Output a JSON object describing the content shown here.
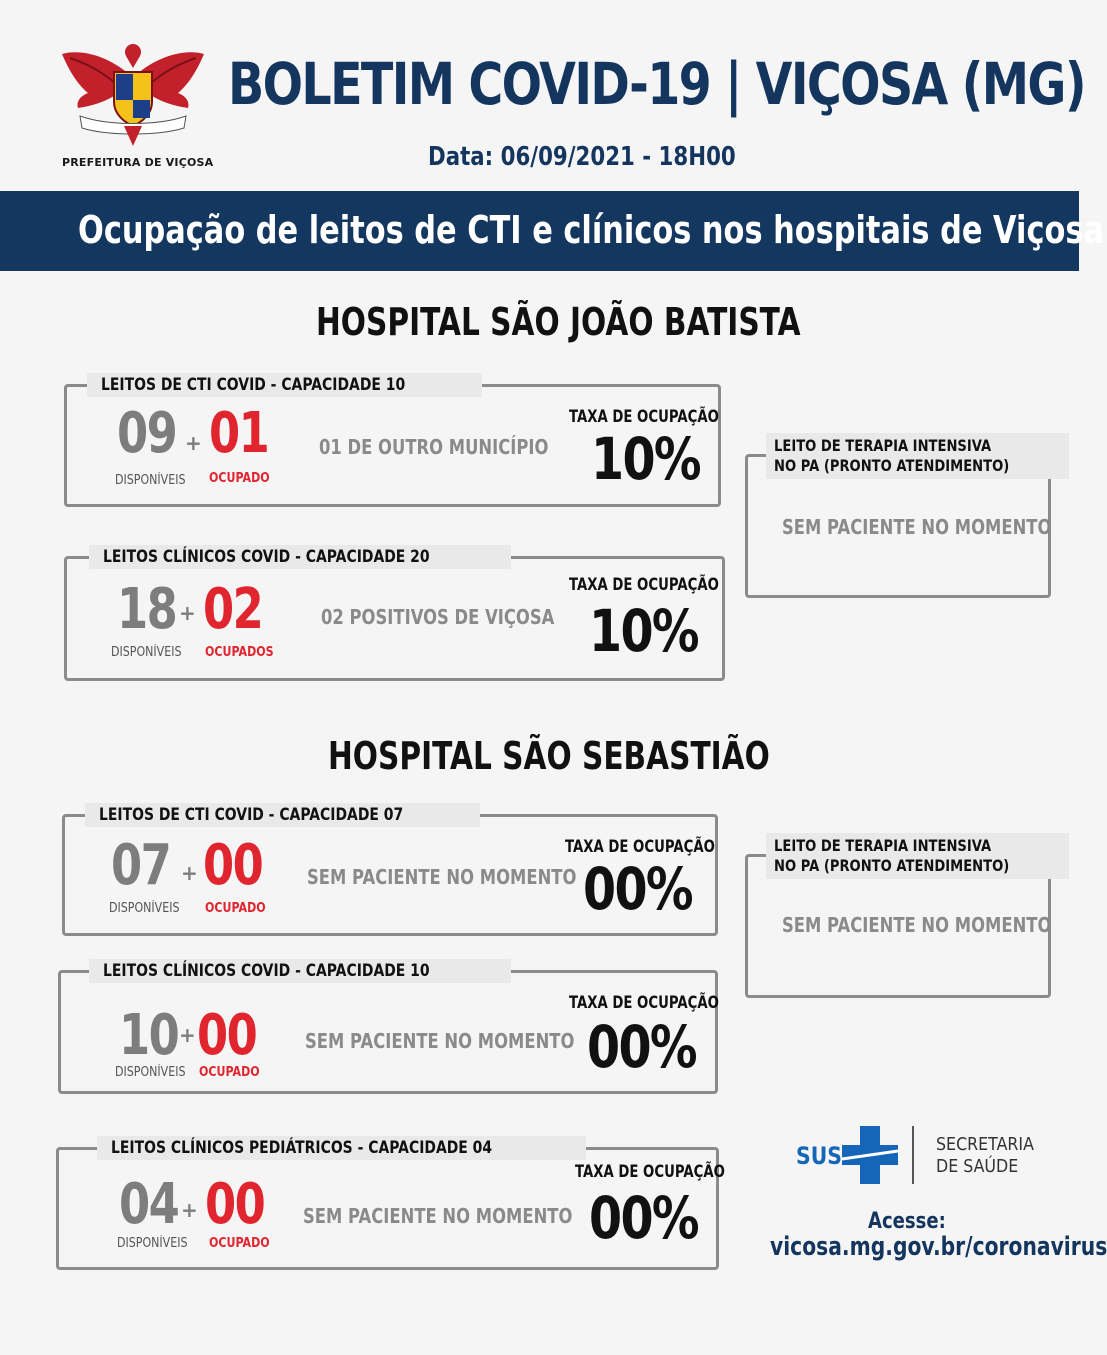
{
  "header": {
    "logo_caption": "PREFEITURA DE VIÇOSA",
    "title": "BOLETIM COVID-19 | VIÇOSA (MG)",
    "date": "Data: 06/09/2021 - 18H00",
    "banner": "Ocupação de leitos de CTI e clínicos nos hospitais de Viçosa"
  },
  "colors": {
    "navy": "#13375f",
    "red": "#e0252f",
    "gray": "#7d7d7d"
  },
  "hospitals": [
    {
      "name": "HOSPITAL SÃO JOÃO BATISTA",
      "cards": [
        {
          "label": "LEITOS DE CTI COVID - CAPACIDADE 10",
          "available": "09",
          "available_label": "DISPONÍVEIS",
          "occupied": "01",
          "occupied_label": "OCUPADO",
          "note": "01 DE OUTRO MUNICÍPIO",
          "rate_label": "TAXA DE OCUPAÇÃO",
          "rate": "10%"
        },
        {
          "label": "LEITOS CLÍNICOS COVID - CAPACIDADE 20",
          "available": "18",
          "available_label": "DISPONÍVEIS",
          "occupied": "02",
          "occupied_label": "OCUPADOS",
          "note": "02 POSITIVOS DE VIÇOSA",
          "rate_label": "TAXA DE OCUPAÇÃO",
          "rate": "10%"
        }
      ],
      "side": {
        "label_line1": "LEITO DE TERAPIA INTENSIVA",
        "label_line2": "NO PA (PRONTO ATENDIMENTO)",
        "note": "SEM PACIENTE NO MOMENTO"
      }
    },
    {
      "name": "HOSPITAL SÃO SEBASTIÃO",
      "cards": [
        {
          "label": "LEITOS DE CTI COVID - CAPACIDADE 07",
          "available": "07",
          "available_label": "DISPONÍVEIS",
          "occupied": "00",
          "occupied_label": "OCUPADO",
          "note": "SEM PACIENTE NO MOMENTO",
          "rate_label": "TAXA DE OCUPAÇÃO",
          "rate": "00%"
        },
        {
          "label": "LEITOS CLÍNICOS COVID - CAPACIDADE 10",
          "available": "10",
          "available_label": "DISPONÍVEIS",
          "occupied": "00",
          "occupied_label": "OCUPADO",
          "note": "SEM PACIENTE NO MOMENTO",
          "rate_label": "TAXA DE OCUPAÇÃO",
          "rate": "00%"
        },
        {
          "label": "LEITOS CLÍNICOS PEDIÁTRICOS - CAPACIDADE 04",
          "available": "04",
          "available_label": "DISPONÍVEIS",
          "occupied": "00",
          "occupied_label": "OCUPADO",
          "note": "SEM PACIENTE NO MOMENTO",
          "rate_label": "TAXA DE OCUPAÇÃO",
          "rate": "00%"
        }
      ],
      "side": {
        "label_line1": "LEITO DE TERAPIA INTENSIVA",
        "label_line2": "NO PA (PRONTO ATENDIMENTO)",
        "note": "SEM PACIENTE NO MOMENTO"
      }
    }
  ],
  "footer": {
    "sus": "SUS",
    "secretaria_line1": "SECRETARIA",
    "secretaria_line2": "DE SAÚDE",
    "access_label": "Acesse:",
    "website": "vicosa.mg.gov.br/coronavirus"
  }
}
